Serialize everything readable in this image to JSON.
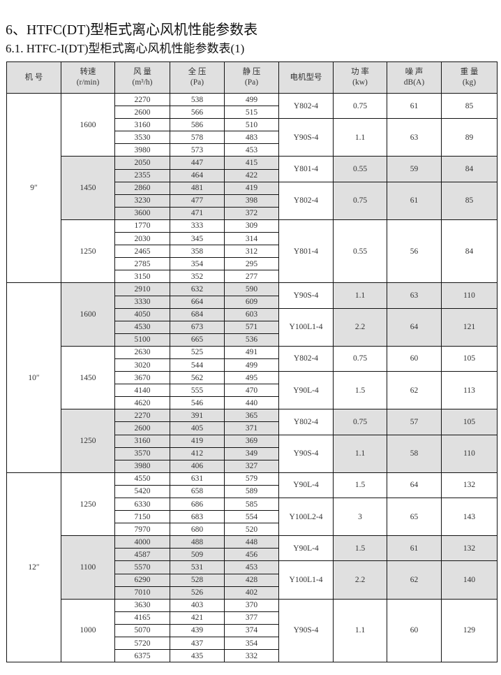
{
  "title": "6、HTFC(DT)型柜式离心风机性能参数表",
  "subtitle": "6.1. HTFC-I(DT)型柜式离心风机性能参数表(1)",
  "colors": {
    "shade": "#e0e0e0",
    "border": "#111111"
  },
  "headers": [
    {
      "line1": "机 号",
      "line2": ""
    },
    {
      "line1": "转速",
      "line2": "(r/min)"
    },
    {
      "line1": "风 量",
      "line2": "(m³/h)"
    },
    {
      "line1": "全 压",
      "line2": "(Pa)"
    },
    {
      "line1": "静 压",
      "line2": "(Pa)"
    },
    {
      "line1": "电机型号",
      "line2": ""
    },
    {
      "line1": "功 率",
      "line2": "(kw)"
    },
    {
      "line1": "噪 声",
      "line2": "dB(A)"
    },
    {
      "line1": "重 量",
      "line2": "(kg)"
    }
  ],
  "groups": [
    {
      "model": "9″",
      "speeds": [
        {
          "speed": "1600",
          "shaded": false,
          "motors": [
            {
              "motor": "Y802-4",
              "power": "0.75",
              "noise": "61",
              "weight": "85",
              "rows": [
                [
                  "2270",
                  "538",
                  "499"
                ],
                [
                  "2600",
                  "566",
                  "515"
                ]
              ]
            },
            {
              "motor": "Y90S-4",
              "power": "1.1",
              "noise": "63",
              "weight": "89",
              "rows": [
                [
                  "3160",
                  "586",
                  "510"
                ],
                [
                  "3530",
                  "578",
                  "483"
                ],
                [
                  "3980",
                  "573",
                  "453"
                ]
              ]
            }
          ]
        },
        {
          "speed": "1450",
          "shaded": true,
          "motors": [
            {
              "motor": "Y801-4",
              "power": "0.55",
              "noise": "59",
              "weight": "84",
              "rows": [
                [
                  "2050",
                  "447",
                  "415"
                ],
                [
                  "2355",
                  "464",
                  "422"
                ]
              ]
            },
            {
              "motor": "Y802-4",
              "power": "0.75",
              "noise": "61",
              "weight": "85",
              "rows": [
                [
                  "2860",
                  "481",
                  "419"
                ],
                [
                  "3230",
                  "477",
                  "398"
                ],
                [
                  "3600",
                  "471",
                  "372"
                ]
              ]
            }
          ]
        },
        {
          "speed": "1250",
          "shaded": false,
          "motors": [
            {
              "motor": "Y801-4",
              "power": "0.55",
              "noise": "56",
              "weight": "84",
              "rows": [
                [
                  "1770",
                  "333",
                  "309"
                ],
                [
                  "2030",
                  "345",
                  "314"
                ],
                [
                  "2465",
                  "358",
                  "312"
                ],
                [
                  "2785",
                  "354",
                  "295"
                ],
                [
                  "3150",
                  "352",
                  "277"
                ]
              ]
            }
          ]
        }
      ]
    },
    {
      "model": "10″",
      "speeds": [
        {
          "speed": "1600",
          "shaded": true,
          "motors": [
            {
              "motor": "Y90S-4",
              "power": "1.1",
              "noise": "63",
              "weight": "110",
              "rows": [
                [
                  "2910",
                  "632",
                  "590"
                ],
                [
                  "3330",
                  "664",
                  "609"
                ]
              ]
            },
            {
              "motor": "Y100L1-4",
              "power": "2.2",
              "noise": "64",
              "weight": "121",
              "rows": [
                [
                  "4050",
                  "684",
                  "603"
                ],
                [
                  "4530",
                  "673",
                  "571"
                ],
                [
                  "5100",
                  "665",
                  "536"
                ]
              ]
            }
          ]
        },
        {
          "speed": "1450",
          "shaded": false,
          "motors": [
            {
              "motor": "Y802-4",
              "power": "0.75",
              "noise": "60",
              "weight": "105",
              "rows": [
                [
                  "2630",
                  "525",
                  "491"
                ],
                [
                  "3020",
                  "544",
                  "499"
                ]
              ]
            },
            {
              "motor": "Y90L-4",
              "power": "1.5",
              "noise": "62",
              "weight": "113",
              "rows": [
                [
                  "3670",
                  "562",
                  "495"
                ],
                [
                  "4140",
                  "555",
                  "470"
                ],
                [
                  "4620",
                  "546",
                  "440"
                ]
              ]
            }
          ]
        },
        {
          "speed": "1250",
          "shaded": true,
          "motors": [
            {
              "motor": "Y802-4",
              "power": "0.75",
              "noise": "57",
              "weight": "105",
              "rows": [
                [
                  "2270",
                  "391",
                  "365"
                ],
                [
                  "2600",
                  "405",
                  "371"
                ]
              ]
            },
            {
              "motor": "Y90S-4",
              "power": "1.1",
              "noise": "58",
              "weight": "110",
              "rows": [
                [
                  "3160",
                  "419",
                  "369"
                ],
                [
                  "3570",
                  "412",
                  "349"
                ],
                [
                  "3980",
                  "406",
                  "327"
                ]
              ]
            }
          ]
        }
      ]
    },
    {
      "model": "12″",
      "speeds": [
        {
          "speed": "1250",
          "shaded": false,
          "motors": [
            {
              "motor": "Y90L-4",
              "power": "1.5",
              "noise": "64",
              "weight": "132",
              "rows": [
                [
                  "4550",
                  "631",
                  "579"
                ],
                [
                  "5420",
                  "658",
                  "589"
                ]
              ]
            },
            {
              "motor": "Y100L2-4",
              "power": "3",
              "noise": "65",
              "weight": "143",
              "rows": [
                [
                  "6330",
                  "686",
                  "585"
                ],
                [
                  "7150",
                  "683",
                  "554"
                ],
                [
                  "7970",
                  "680",
                  "520"
                ]
              ]
            }
          ]
        },
        {
          "speed": "1100",
          "shaded": true,
          "motors": [
            {
              "motor": "Y90L-4",
              "power": "1.5",
              "noise": "61",
              "weight": "132",
              "rows": [
                [
                  "4000",
                  "488",
                  "448"
                ],
                [
                  "4587",
                  "509",
                  "456"
                ]
              ]
            },
            {
              "motor": "Y100L1-4",
              "power": "2.2",
              "noise": "62",
              "weight": "140",
              "rows": [
                [
                  "5570",
                  "531",
                  "453"
                ],
                [
                  "6290",
                  "528",
                  "428"
                ],
                [
                  "7010",
                  "526",
                  "402"
                ]
              ]
            }
          ]
        },
        {
          "speed": "1000",
          "shaded": false,
          "motors": [
            {
              "motor": "Y90S-4",
              "power": "1.1",
              "noise": "60",
              "weight": "129",
              "rows": [
                [
                  "3630",
                  "403",
                  "370"
                ],
                [
                  "4165",
                  "421",
                  "377"
                ],
                [
                  "5070",
                  "439",
                  "374"
                ],
                [
                  "5720",
                  "437",
                  "354"
                ],
                [
                  "6375",
                  "435",
                  "332"
                ]
              ]
            }
          ]
        }
      ]
    }
  ]
}
